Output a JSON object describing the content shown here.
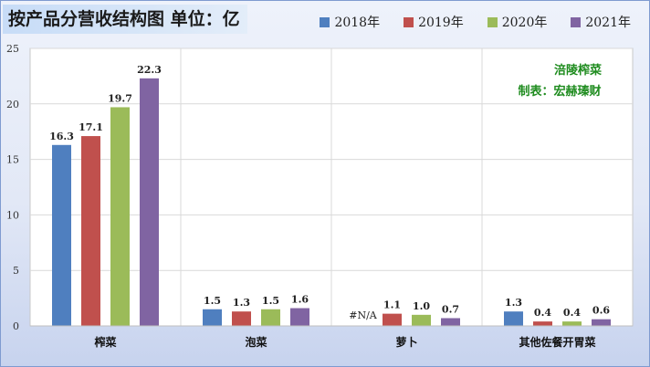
{
  "title": "按产品分营收结构图 单位：亿",
  "colors": {
    "2018年": "#4f7fbf",
    "2019年": "#c0504d",
    "2020年": "#9bbb59",
    "2021年": "#8064a2",
    "note": "#1f8c1f"
  },
  "annotation": {
    "line1": "涪陵榨菜",
    "line2": "制表：宏赫瑧财"
  },
  "chart_data": {
    "type": "bar",
    "title": "按产品分营收结构图 单位：亿",
    "xlabel": "",
    "ylabel": "",
    "categories": [
      "榨菜",
      "泡菜",
      "萝卜",
      "其他佐餐开胃菜"
    ],
    "series": [
      {
        "name": "2018年",
        "values": [
          16.3,
          1.5,
          null,
          1.3
        ],
        "labels": [
          "16.3",
          "1.5",
          "#N/A",
          "1.3"
        ]
      },
      {
        "name": "2019年",
        "values": [
          17.1,
          1.3,
          1.1,
          0.4
        ],
        "labels": [
          "17.1",
          "1.3",
          "1.1",
          "0.4"
        ]
      },
      {
        "name": "2020年",
        "values": [
          19.7,
          1.5,
          1.0,
          0.4
        ],
        "labels": [
          "19.7",
          "1.5",
          "1.0",
          "0.4"
        ]
      },
      {
        "name": "2021年",
        "values": [
          22.3,
          1.6,
          0.7,
          0.6
        ],
        "labels": [
          "22.3",
          "1.6",
          "0.7",
          "0.6"
        ]
      }
    ],
    "ylim": [
      0,
      25
    ],
    "yticks": [
      0,
      5,
      10,
      15,
      20,
      25
    ],
    "grid": true,
    "legend_position": "top-right"
  }
}
